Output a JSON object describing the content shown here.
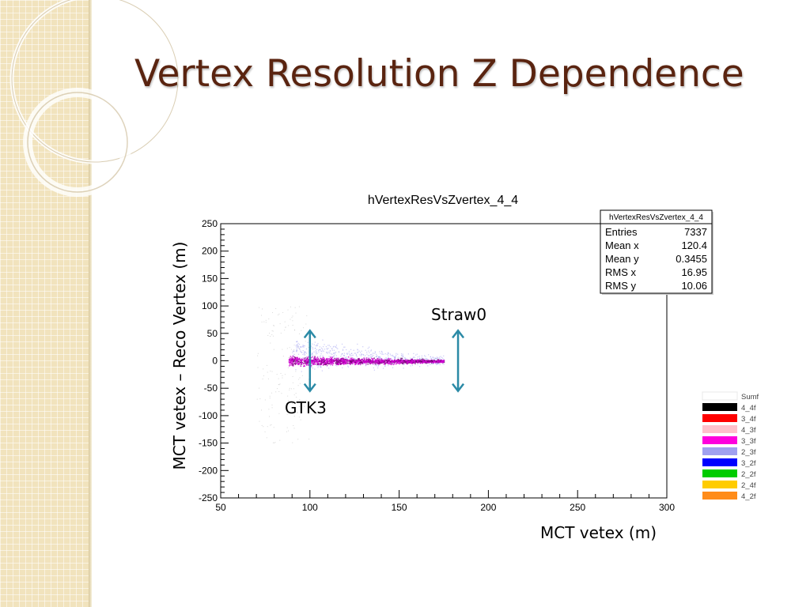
{
  "slide": {
    "title": "Vertex Resolution Z Dependence"
  },
  "annotations": {
    "straw": "Straw0",
    "gtk": "GTK3",
    "xlabel": "MCT vetex (m)",
    "ylabel": "MCT vetex – Reco Vertex (m)"
  },
  "colors": {
    "title": "#5a2410",
    "sidebar": "#f1e3bd",
    "arrow": "#2b8aa6"
  },
  "chart_data": {
    "type": "scatter",
    "title": "hVertexResVsZvertex_4_4",
    "xlabel": "MCT vetex (m)",
    "ylabel": "MCT vetex – Reco Vertex (m)",
    "xlim": [
      50,
      300
    ],
    "ylim": [
      -250,
      250
    ],
    "xticks": [
      50,
      100,
      150,
      200,
      250,
      300
    ],
    "yticks": [
      250,
      200,
      150,
      100,
      50,
      0,
      -50,
      -100,
      -150,
      -200,
      -250
    ],
    "grid": false,
    "stats": {
      "name": "hVertexResVsZvertex_4_4",
      "rows": [
        {
          "label": "Entries",
          "value": "7337"
        },
        {
          "label": "Mean x",
          "value": "120.4"
        },
        {
          "label": "Mean y",
          "value": "0.3455"
        },
        {
          "label": "RMS x",
          "value": "16.95"
        },
        {
          "label": "RMS y",
          "value": "10.06"
        }
      ]
    },
    "legend": {
      "placement": "right",
      "entries": [
        {
          "name": "Sumf",
          "color": "#ffffff"
        },
        {
          "name": "4_4f",
          "color": "#000000"
        },
        {
          "name": "3_4f",
          "color": "#ff0000"
        },
        {
          "name": "4_3f",
          "color": "#ffc0cb"
        },
        {
          "name": "3_3f",
          "color": "#ff00dd"
        },
        {
          "name": "2_3f",
          "color": "#a0a0f0"
        },
        {
          "name": "3_2f",
          "color": "#0000ff"
        },
        {
          "name": "2_2f",
          "color": "#00cc00"
        },
        {
          "name": "2_4f",
          "color": "#ffcc00"
        },
        {
          "name": "4_2f",
          "color": "#ff8c1a"
        }
      ]
    },
    "series": [
      {
        "color": "#cc00cc",
        "x_range": [
          88,
          175
        ],
        "y_center": 0,
        "y_spread": 4
      },
      {
        "color": "#a0a0f0",
        "x_range": [
          90,
          175
        ],
        "y_range": [
          -30,
          60
        ]
      },
      {
        "color": "#c0c0c0",
        "x_range": [
          70,
          100
        ],
        "y_range": [
          -150,
          100
        ]
      }
    ],
    "markers": [
      {
        "label": "GTK3",
        "x": 100,
        "y_range": [
          -55,
          55
        ]
      },
      {
        "label": "Straw0",
        "x": 183,
        "y_range": [
          -55,
          55
        ]
      }
    ]
  }
}
